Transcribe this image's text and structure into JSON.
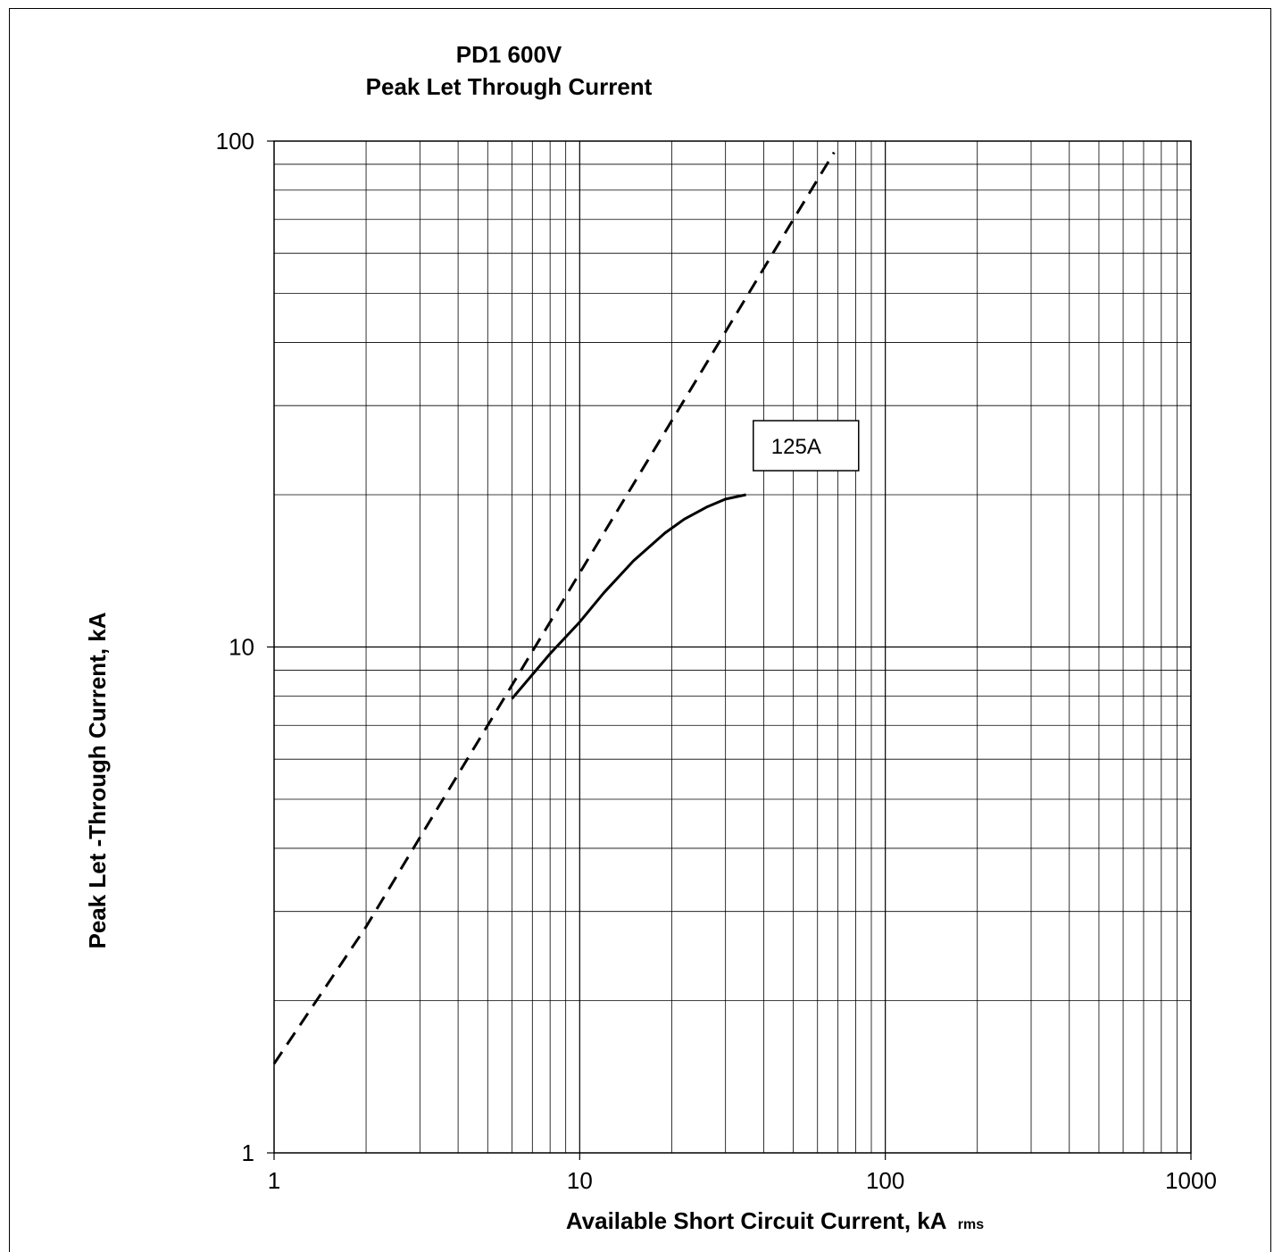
{
  "chart_data": {
    "type": "line",
    "title": "PD1 600V",
    "subtitle": "Peak Let Through Current",
    "xlabel": "Available Short Circuit Current, kA",
    "xlabel_suffix": "rms",
    "ylabel": "Peak Let -Through Current, kA",
    "x_scale": "log",
    "y_scale": "log",
    "xlim": [
      1,
      1000
    ],
    "ylim": [
      1,
      100
    ],
    "x_ticks": [
      "1",
      "10",
      "100",
      "1000"
    ],
    "y_ticks": [
      "1",
      "10",
      "100"
    ],
    "grid": true,
    "series": [
      {
        "style": "dashed",
        "color": "#000000",
        "x": [
          1,
          2,
          3,
          5,
          10,
          20,
          30,
          50,
          68
        ],
        "y": [
          1.5,
          2.8,
          4.2,
          7.0,
          14.0,
          28.0,
          42.0,
          70.0,
          95.0
        ]
      },
      {
        "name": "125A",
        "style": "solid",
        "color": "#000000",
        "x": [
          6,
          8,
          10,
          12,
          15,
          19,
          22,
          26,
          30,
          35
        ],
        "y": [
          7.9,
          9.7,
          11.2,
          12.8,
          14.8,
          16.8,
          17.9,
          18.9,
          19.6,
          20.0
        ]
      }
    ],
    "annotations": [
      {
        "text": "125A",
        "x": 55,
        "y": 25
      }
    ]
  }
}
